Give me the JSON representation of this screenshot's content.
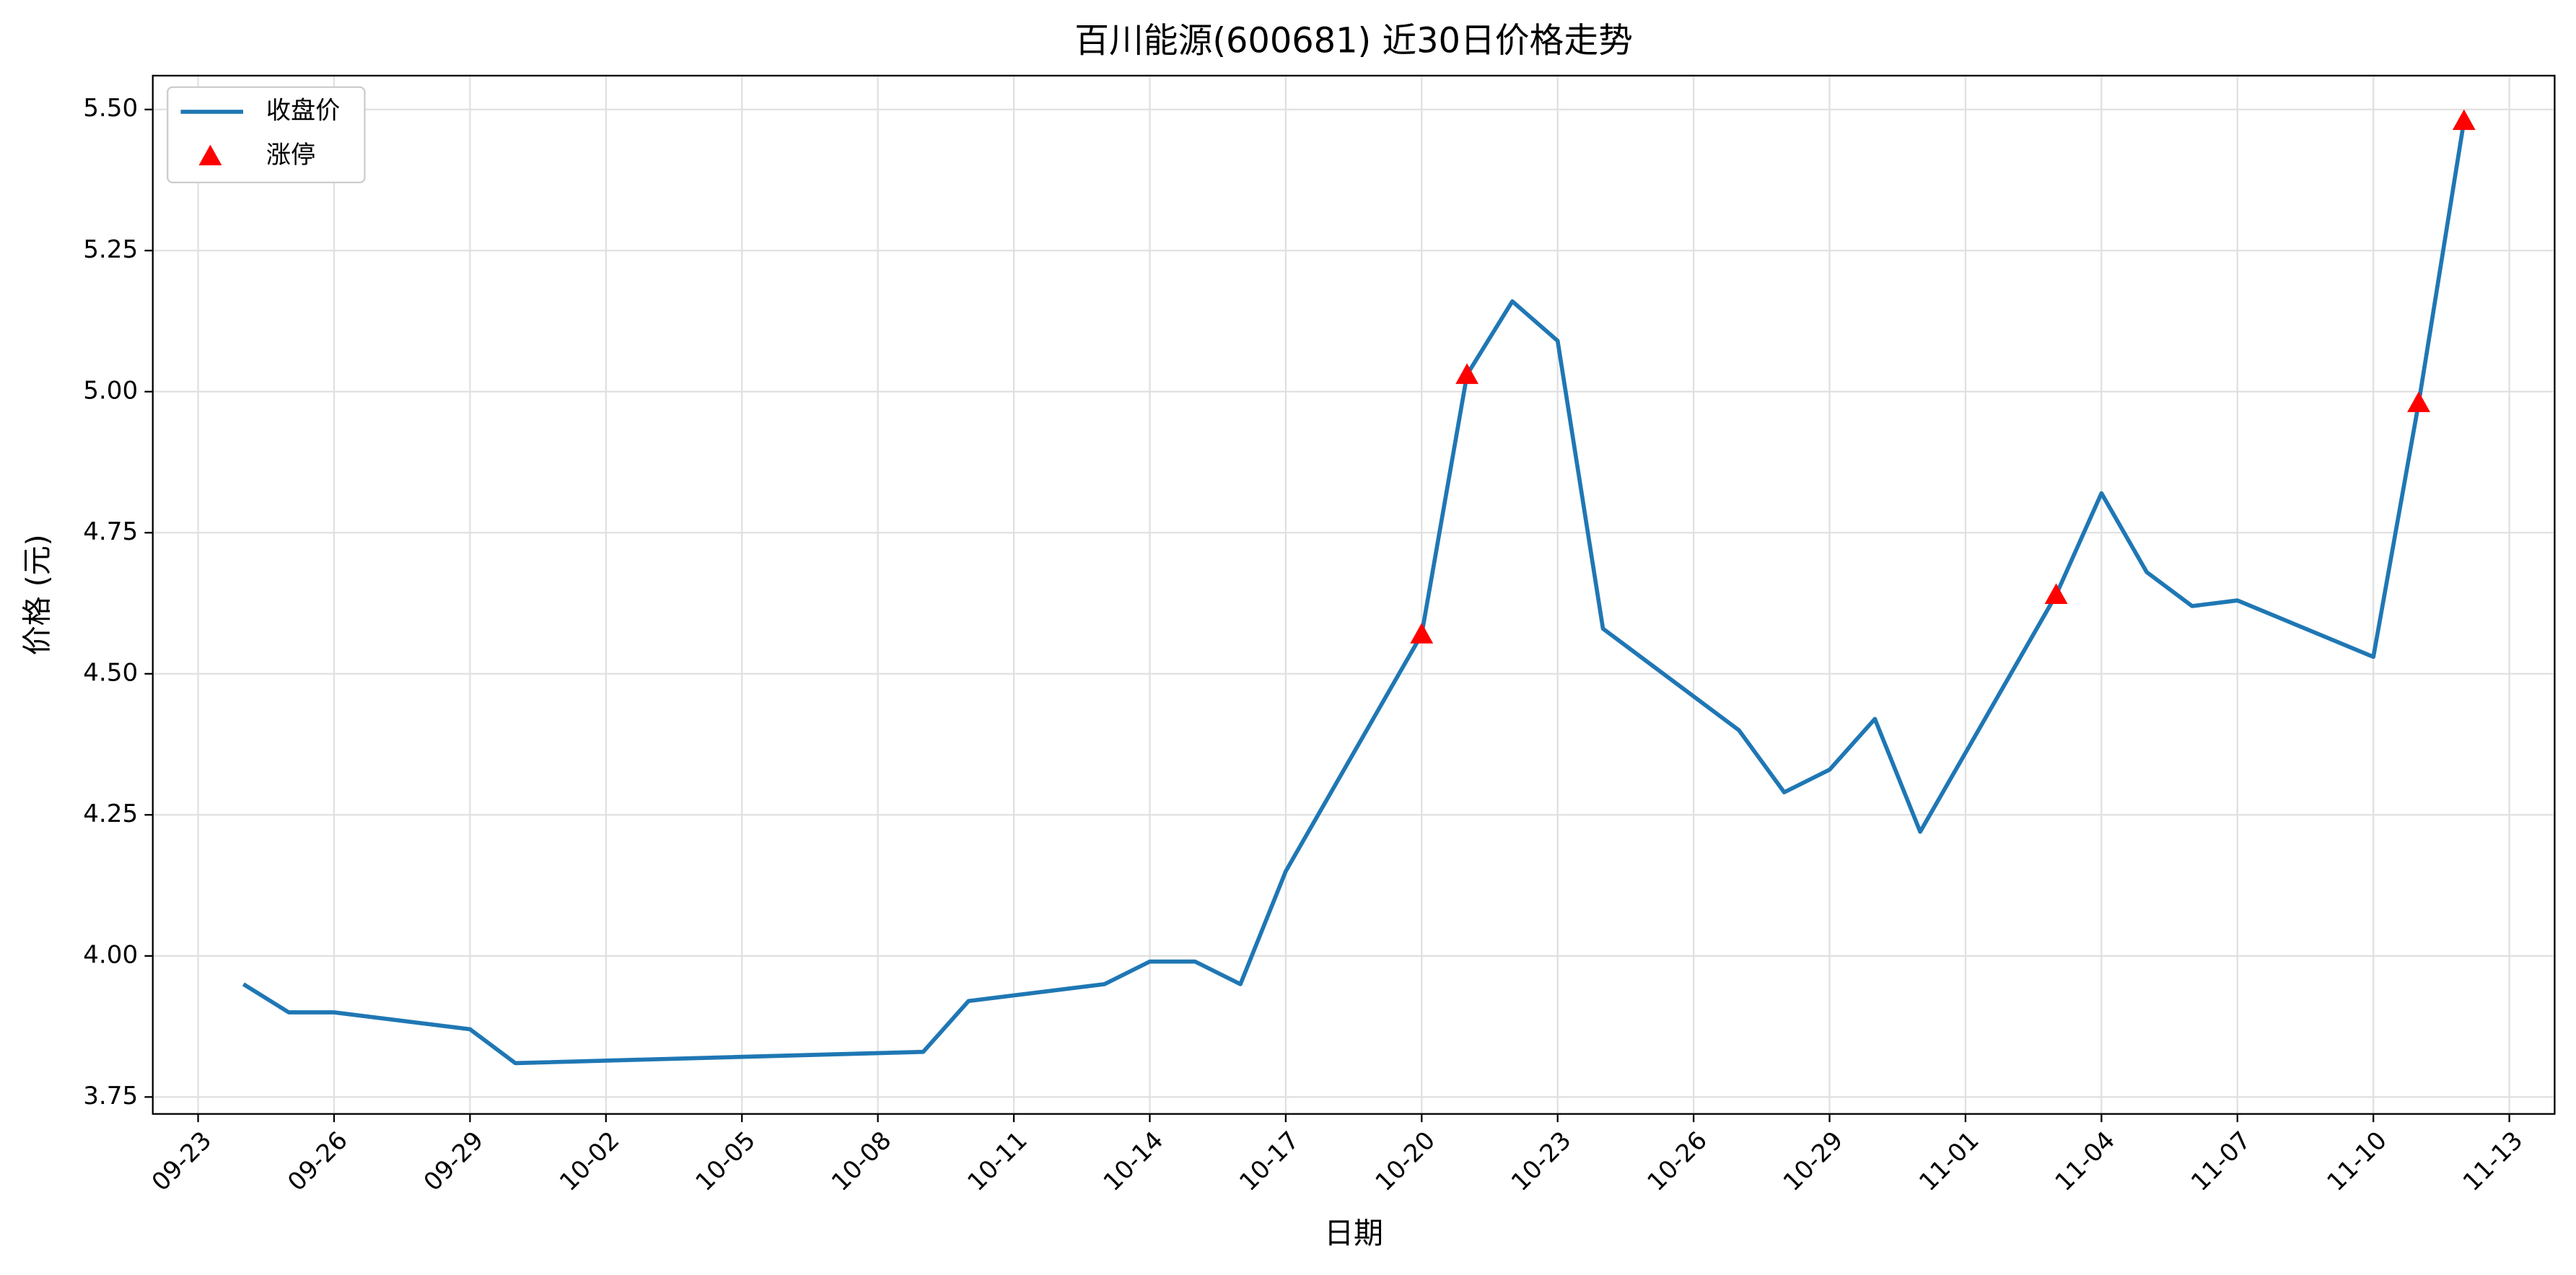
{
  "chart_data": {
    "type": "line",
    "title": "百川能源(600681) 近30日价格走势",
    "xlabel": "日期",
    "ylabel": "价格 (元)",
    "series": [
      {
        "name": "收盘价",
        "color": "#1f77b4",
        "style": "line",
        "x": [
          "09-24",
          "09-25",
          "09-26",
          "09-29",
          "09-30",
          "10-09",
          "10-10",
          "10-13",
          "10-14",
          "10-15",
          "10-16",
          "10-17",
          "10-20",
          "10-21",
          "10-22",
          "10-23",
          "10-24",
          "10-27",
          "10-28",
          "10-29",
          "10-30",
          "10-31",
          "11-03",
          "11-04",
          "11-05",
          "11-06",
          "11-07",
          "11-10",
          "11-11",
          "11-12"
        ],
        "values": [
          3.95,
          3.9,
          3.9,
          3.87,
          3.81,
          3.83,
          3.92,
          3.95,
          3.99,
          3.99,
          3.95,
          4.15,
          4.57,
          5.03,
          5.16,
          5.09,
          4.58,
          4.4,
          4.29,
          4.33,
          4.42,
          4.22,
          4.64,
          4.82,
          4.68,
          4.62,
          4.63,
          4.53,
          4.98,
          5.48
        ]
      },
      {
        "name": "涨停",
        "color": "#ff0000",
        "style": "triangle",
        "x": [
          "10-20",
          "10-21",
          "11-03",
          "11-11",
          "11-12"
        ],
        "values": [
          4.57,
          5.03,
          4.64,
          4.98,
          5.48
        ]
      }
    ],
    "xlim": [
      "09-22",
      "11-14"
    ],
    "xticks": [
      "09-23",
      "09-26",
      "09-29",
      "10-02",
      "10-05",
      "10-08",
      "10-11",
      "10-14",
      "10-17",
      "10-20",
      "10-23",
      "10-26",
      "10-29",
      "11-01",
      "11-04",
      "11-07",
      "11-10",
      "11-13"
    ],
    "ylim": [
      3.72,
      5.56
    ],
    "yticks": [
      3.75,
      {
        "value": 4,
        "label": "4.00"
      },
      4.25,
      {
        "value": 4.5,
        "label": "4.50"
      },
      4.75,
      {
        "value": 5,
        "label": "5.00"
      },
      5.25,
      {
        "value": 5.5,
        "label": "5.50"
      }
    ],
    "grid": true,
    "legend": "upper left"
  }
}
